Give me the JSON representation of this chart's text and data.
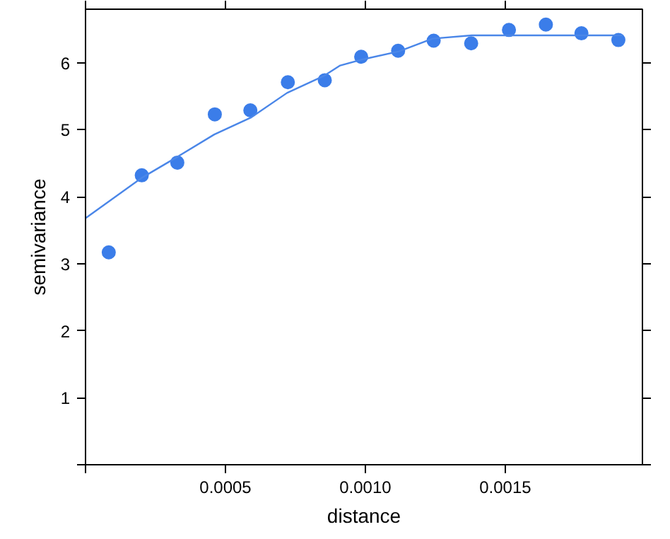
{
  "chart_data": {
    "type": "scatter",
    "xlabel": "distance",
    "ylabel": "semivariance",
    "xlim": [
      0,
      0.00199
    ],
    "ylim": [
      0,
      6.8
    ],
    "xticks": [
      {
        "value": 0,
        "label": null
      },
      0.0005,
      {
        "value": 0.001,
        "label": "0.0010"
      },
      0.0015
    ],
    "yticks": [
      {
        "value": 0,
        "label": null
      },
      1,
      2,
      3,
      4,
      5,
      6
    ],
    "grid": false,
    "marker": "circle",
    "series": [
      {
        "color": "#3b7de9",
        "x": [
          8.3e-05,
          0.000201,
          0.000328,
          0.000462,
          0.000589,
          0.000723,
          0.000855,
          0.000985,
          0.001117,
          0.001244,
          0.001378,
          0.001513,
          0.001645,
          0.001772,
          0.001904
        ],
        "values": [
          3.17,
          4.32,
          4.51,
          5.23,
          5.29,
          5.71,
          5.74,
          6.09,
          6.18,
          6.33,
          6.29,
          6.49,
          6.57,
          6.44,
          6.34
        ]
      },
      {
        "type": "line",
        "color": "#4a86e8",
        "line_style": "solid",
        "marker": "none",
        "x": [
          0,
          0.0002,
          0.00033,
          0.00046,
          0.00059,
          0.00072,
          0.00085,
          0.00091,
          0.00099,
          0.00112,
          0.00124,
          0.00138,
          0.0015,
          0.0017,
          0.00192
        ],
        "values": [
          3.68,
          4.28,
          4.6,
          4.93,
          5.18,
          5.55,
          5.8,
          5.96,
          6.05,
          6.17,
          6.36,
          6.41,
          6.41,
          6.41,
          6.41
        ]
      }
    ]
  }
}
